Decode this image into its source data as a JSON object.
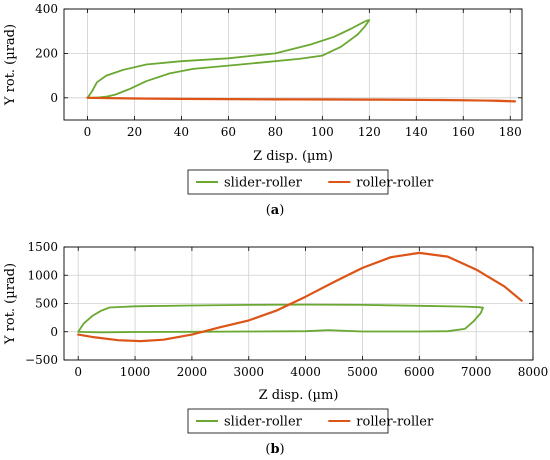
{
  "colors": {
    "green": "#6aa831",
    "orange": "#dd5417",
    "grid": "#cfcfcf"
  },
  "chart_data": [
    {
      "type": "line",
      "caption": "(a)",
      "xlabel": "Z disp. (µm)",
      "ylabel": "Y rot. (µrad)",
      "xlim": [
        -10,
        185
      ],
      "ylim": [
        -100,
        400
      ],
      "xticks": [
        0,
        20,
        40,
        60,
        80,
        100,
        120,
        140,
        160,
        180
      ],
      "yticks": [
        0,
        200,
        400
      ],
      "grid": true,
      "legend": "bottom-center",
      "series": [
        {
          "name": "slider-roller",
          "color": "green",
          "x": [
            0,
            2,
            4,
            8,
            15,
            25,
            40,
            60,
            80,
            95,
            105,
            112,
            117,
            119,
            120,
            118,
            115,
            108,
            100,
            90,
            75,
            60,
            45,
            35,
            25,
            18,
            12,
            8,
            5,
            3,
            1,
            0
          ],
          "y": [
            0,
            30,
            70,
            100,
            125,
            150,
            165,
            178,
            200,
            240,
            275,
            310,
            338,
            348,
            350,
            320,
            285,
            230,
            190,
            175,
            160,
            145,
            130,
            110,
            75,
            40,
            15,
            5,
            2,
            1,
            0,
            0
          ]
        },
        {
          "name": "roller-roller",
          "color": "orange",
          "x": [
            0,
            20,
            40,
            60,
            80,
            100,
            120,
            140,
            160,
            175,
            182,
            175,
            150,
            120,
            90,
            60,
            30,
            10,
            0
          ],
          "y": [
            0,
            -3,
            -5,
            -6,
            -7,
            -7,
            -8,
            -9,
            -11,
            -14,
            -16,
            -13,
            -10,
            -8,
            -7,
            -6,
            -4,
            -2,
            0
          ]
        }
      ]
    },
    {
      "type": "line",
      "caption": "(b)",
      "xlabel": "Z disp. (µm)",
      "ylabel": "Y rot. (µrad)",
      "xlim": [
        -250,
        8000
      ],
      "ylim": [
        -500,
        1500
      ],
      "xticks": [
        0,
        1000,
        2000,
        3000,
        4000,
        5000,
        6000,
        7000,
        8000
      ],
      "yticks": [
        -500,
        0,
        500,
        1000,
        1500
      ],
      "grid": true,
      "legend": "bottom-center",
      "series": [
        {
          "name": "slider-roller",
          "color": "green",
          "x": [
            0,
            100,
            250,
            400,
            550,
            1000,
            2000,
            3000,
            4000,
            5000,
            6000,
            6800,
            7050,
            7120,
            7080,
            6950,
            6800,
            6500,
            6000,
            5000,
            4400,
            4000,
            3000,
            2000,
            1000,
            400,
            100,
            0
          ],
          "y": [
            0,
            150,
            280,
            370,
            430,
            450,
            465,
            475,
            480,
            475,
            460,
            445,
            435,
            425,
            330,
            180,
            50,
            10,
            5,
            5,
            30,
            10,
            5,
            0,
            -5,
            -10,
            -5,
            0
          ]
        },
        {
          "name": "roller-roller",
          "color": "orange",
          "x": [
            0,
            300,
            700,
            1100,
            1500,
            2000,
            2500,
            3000,
            3500,
            4000,
            4500,
            5000,
            5500,
            6000,
            6500,
            7000,
            7500,
            7800
          ],
          "y": [
            -50,
            -100,
            -150,
            -165,
            -140,
            -50,
            80,
            200,
            380,
            620,
            880,
            1130,
            1320,
            1395,
            1330,
            1100,
            800,
            550
          ]
        }
      ]
    }
  ]
}
